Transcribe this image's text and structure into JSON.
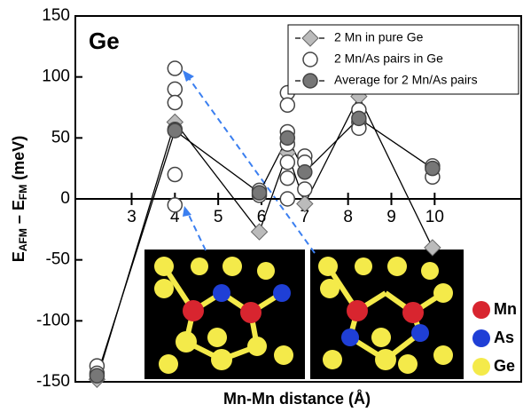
{
  "chart_data": {
    "type": "line",
    "title": "Ge",
    "xlabel": "Mn-Mn distance (Å)",
    "ylabel_parts": [
      "E",
      "AFM",
      " – E",
      "FM",
      " (meV)"
    ],
    "xlim": [
      1.7,
      12.0
    ],
    "ylim": [
      -150,
      150
    ],
    "xticks": [
      3,
      4,
      5,
      6,
      7,
      8,
      9,
      10
    ],
    "yticks": [
      -150,
      -100,
      -50,
      0,
      50,
      100,
      150
    ],
    "legend": "top-right",
    "series": [
      {
        "name": "2 Mn in pure Ge",
        "marker": "diamond",
        "color": "#bbbbbb",
        "line": true,
        "x": [
          2.2,
          4.0,
          5.95,
          6.6,
          7.0,
          8.25,
          9.95
        ],
        "values": [
          -148,
          63,
          -27,
          38,
          -4,
          84,
          -40
        ]
      },
      {
        "name": "2 Mn/As pairs in Ge",
        "marker": "open-circle",
        "color": "#ffffff",
        "line": false,
        "x": [
          2.2,
          2.2,
          4.0,
          4.0,
          4.0,
          4.0,
          4.0,
          4.0,
          5.95,
          5.95,
          6.6,
          6.6,
          6.6,
          6.6,
          6.6,
          6.6,
          6.6,
          7.0,
          7.0,
          7.0,
          8.25,
          8.25,
          8.25,
          9.95,
          9.95
        ],
        "values": [
          -137,
          -143,
          107,
          90,
          79,
          57,
          20,
          -5,
          3,
          7,
          87,
          77,
          55,
          45,
          30,
          17,
          0,
          35,
          30,
          8,
          73,
          63,
          58,
          27,
          18
        ]
      },
      {
        "name": "Average for 2 Mn/As pairs",
        "marker": "circle",
        "color": "#777777",
        "line": true,
        "x": [
          2.2,
          4.0,
          5.95,
          6.6,
          7.0,
          8.25,
          9.95
        ],
        "values": [
          -145,
          56,
          5,
          50,
          22,
          66,
          25
        ]
      }
    ],
    "inset_legend": [
      {
        "label": "Mn",
        "color": "#d8252f"
      },
      {
        "label": "As",
        "color": "#1f3fd6"
      },
      {
        "label": "Ge",
        "color": "#f4ea4a"
      }
    ]
  }
}
